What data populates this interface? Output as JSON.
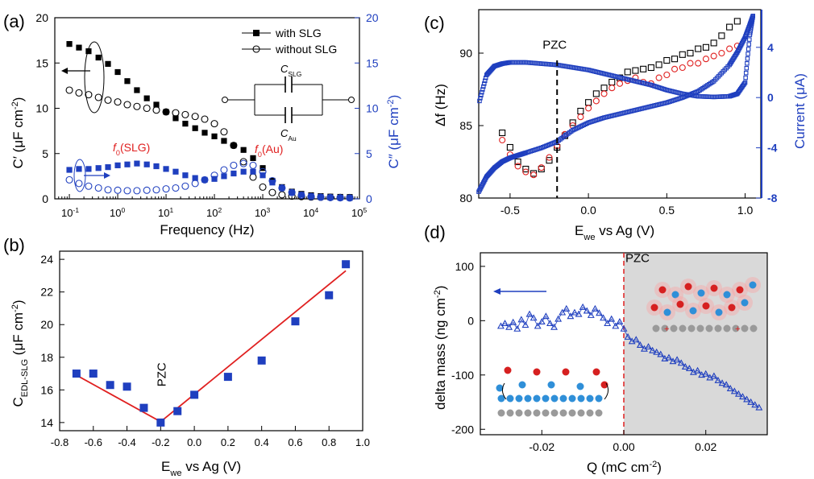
{
  "chart_data": [
    {
      "panel": "(a)",
      "type": "scatter",
      "title": "",
      "xlabel": "Frequency (Hz)",
      "xscale": "log",
      "xlim": [
        0.05,
        100000
      ],
      "xticks": [
        {
          "base": "10",
          "exp": "-1",
          "v": 0.1
        },
        {
          "base": "10",
          "exp": "0",
          "v": 1
        },
        {
          "base": "10",
          "exp": "1",
          "v": 10
        },
        {
          "base": "10",
          "exp": "2",
          "v": 100
        },
        {
          "base": "10",
          "exp": "3",
          "v": 1000
        },
        {
          "base": "10",
          "exp": "4",
          "v": 10000
        },
        {
          "base": "10",
          "exp": "5",
          "v": 100000
        }
      ],
      "ylabel_left": {
        "main": "C′ (μF cm",
        "sup": "-2",
        "tail": ")"
      },
      "ylabel_right": {
        "main": "C″ (μF cm",
        "sup": "-2",
        "tail": ")"
      },
      "ylim": [
        0,
        20
      ],
      "yticks": [
        0,
        5,
        10,
        15,
        20
      ],
      "right_color": "#1f3fbf",
      "legend": [
        "with SLG",
        "without SLG"
      ],
      "annotations": {
        "f0_slg_pre": "f",
        "f0_slg_sub": "0",
        "f0_slg_post": "(SLG)",
        "f0_au_pre": "f",
        "f0_au_sub": "0",
        "f0_au_post": "(Au)",
        "c_slg": "C",
        "c_slg_sub": "SLG",
        "c_au": "C",
        "c_au_sub": "Au"
      },
      "series": [
        {
          "name": "C′ with SLG",
          "axis": "left",
          "marker": "filled-square",
          "color": "#000000",
          "x": [
            0.1,
            0.158,
            0.25,
            0.4,
            0.63,
            1,
            1.58,
            2.5,
            4,
            6.3,
            10,
            15.8,
            25,
            40,
            63,
            100,
            158,
            250,
            400,
            630,
            1000,
            1580,
            2500,
            4000,
            6300,
            10000,
            15800,
            25000,
            40000,
            63000
          ],
          "y": [
            17.1,
            16.7,
            16.3,
            15.6,
            14.9,
            14.0,
            13.0,
            12.0,
            11.1,
            10.4,
            9.6,
            8.9,
            8.3,
            7.8,
            7.3,
            6.9,
            6.4,
            5.9,
            5.4,
            4.5,
            3.4,
            2.0,
            1.3,
            0.8,
            0.55,
            0.4,
            0.3,
            0.25,
            0.22,
            0.2
          ]
        },
        {
          "name": "C′ without SLG",
          "axis": "left",
          "marker": "open-circle",
          "color": "#000000",
          "x": [
            0.1,
            0.158,
            0.25,
            0.4,
            0.63,
            1,
            1.58,
            2.5,
            4,
            6.3,
            10,
            15.8,
            25,
            40,
            63,
            100,
            158,
            250,
            400,
            630,
            1000,
            1580,
            2500,
            4000,
            6300,
            10000,
            15800,
            25000,
            40000,
            63000
          ],
          "y": [
            12.0,
            11.7,
            11.5,
            11.2,
            10.9,
            10.7,
            10.4,
            10.2,
            10.0,
            9.8,
            9.6,
            9.5,
            9.3,
            9.1,
            8.8,
            8.3,
            7.4,
            5.9,
            4.1,
            2.4,
            1.3,
            0.7,
            0.45,
            0.3,
            0.25,
            0.2,
            0.18,
            0.16,
            0.15,
            0.14
          ]
        },
        {
          "name": "C″ with SLG",
          "axis": "right",
          "marker": "filled-square",
          "color": "#1f3fbf",
          "x": [
            0.1,
            0.158,
            0.25,
            0.4,
            0.63,
            1,
            1.58,
            2.5,
            4,
            6.3,
            10,
            15.8,
            25,
            40,
            63,
            100,
            158,
            250,
            400,
            630,
            1000,
            1580,
            2500,
            4000,
            6300,
            10000,
            15800,
            25000,
            40000,
            63000
          ],
          "y": [
            3.2,
            3.3,
            3.3,
            3.4,
            3.5,
            3.7,
            3.8,
            3.9,
            3.8,
            3.6,
            3.3,
            3.0,
            2.6,
            2.3,
            2.1,
            2.2,
            2.5,
            2.8,
            3.0,
            3.0,
            2.6,
            1.8,
            1.2,
            0.7,
            0.45,
            0.3,
            0.2,
            0.15,
            0.12,
            0.1
          ]
        },
        {
          "name": "C″ without SLG",
          "axis": "right",
          "marker": "open-circle",
          "color": "#1f3fbf",
          "x": [
            0.1,
            0.158,
            0.25,
            0.4,
            0.63,
            1,
            1.58,
            2.5,
            4,
            6.3,
            10,
            15.8,
            25,
            40,
            63,
            100,
            158,
            250,
            400,
            630,
            1000,
            1580,
            2500,
            4000,
            6300,
            10000,
            15800,
            25000,
            40000,
            63000
          ],
          "y": [
            2.1,
            1.7,
            1.4,
            1.2,
            1.0,
            0.95,
            0.9,
            0.9,
            0.95,
            1.0,
            1.1,
            1.2,
            1.4,
            1.7,
            2.1,
            2.6,
            3.2,
            3.7,
            3.9,
            3.7,
            3.0,
            2.0,
            1.2,
            0.7,
            0.4,
            0.25,
            0.18,
            0.14,
            0.12,
            0.1
          ]
        }
      ]
    },
    {
      "panel": "(b)",
      "type": "scatter",
      "xlabel": {
        "main": "E",
        "sub": "we",
        "tail": " vs Ag (V)"
      },
      "ylabel": {
        "main": "C",
        "sub": "EDL-SLG",
        "tail": " (μF cm",
        "sup": "-2",
        "end": ")"
      },
      "xlim": [
        -0.8,
        1.0
      ],
      "ylim": [
        13.5,
        24.5
      ],
      "xticks": [
        -0.8,
        -0.6,
        -0.4,
        -0.2,
        0.0,
        0.2,
        0.4,
        0.6,
        0.8,
        1.0
      ],
      "xtick_labels": [
        "-0.8",
        "-0.6",
        "-0.4",
        "-0.2",
        "0.0",
        "0.2",
        "0.4",
        "0.6",
        "0.8",
        "1.0"
      ],
      "yticks": [
        14,
        16,
        18,
        20,
        22,
        24
      ],
      "annotation": "PZC",
      "marker_color": "#1f3fbf",
      "fit_color": "#e02020",
      "x": [
        -0.7,
        -0.6,
        -0.5,
        -0.4,
        -0.3,
        -0.2,
        -0.1,
        0.0,
        0.2,
        0.4,
        0.6,
        0.8,
        0.9
      ],
      "y": [
        17.0,
        17.0,
        16.3,
        16.2,
        14.9,
        14.0,
        14.7,
        15.7,
        16.8,
        17.8,
        20.2,
        21.8,
        23.7
      ],
      "fit_lines": [
        {
          "x": [
            -0.7,
            -0.2
          ],
          "y": [
            16.9,
            14.05
          ]
        },
        {
          "x": [
            -0.2,
            0.9
          ],
          "y": [
            14.05,
            23.3
          ]
        }
      ]
    },
    {
      "panel": "(c)",
      "type": "line",
      "xlabel": {
        "main": "E",
        "sub": "we",
        "tail": " vs Ag (V)"
      },
      "ylabel_left": "Δf (Hz)",
      "ylabel_right": "Current (μA)",
      "xlim": [
        -0.7,
        1.1
      ],
      "ylim_left": [
        80,
        93
      ],
      "ylim_right": [
        -8,
        7
      ],
      "xticks": [
        -0.5,
        0.0,
        0.5,
        1.0
      ],
      "xtick_labels": [
        "-0.5",
        "0.0",
        "0.5",
        "1.0"
      ],
      "yticks_left": [
        80,
        85,
        90
      ],
      "yticks_right": [
        -8,
        -4,
        0,
        4
      ],
      "annotation": "PZC",
      "pzc_x": -0.2,
      "right_color": "#1f3fbf",
      "series": [
        {
          "name": "Δf run 1",
          "axis": "left",
          "marker": "open-square",
          "color": "#000000",
          "x": [
            -0.55,
            -0.5,
            -0.45,
            -0.4,
            -0.35,
            -0.3,
            -0.25,
            -0.2,
            -0.15,
            -0.1,
            -0.05,
            0.0,
            0.05,
            0.1,
            0.15,
            0.2,
            0.25,
            0.3,
            0.35,
            0.4,
            0.45,
            0.5,
            0.55,
            0.6,
            0.65,
            0.7,
            0.75,
            0.8,
            0.85,
            0.9,
            0.95
          ],
          "y": [
            84.5,
            83.5,
            82.5,
            82.0,
            81.7,
            82.0,
            82.6,
            83.5,
            84.3,
            85.2,
            86.0,
            86.6,
            87.2,
            87.6,
            88.0,
            88.3,
            88.7,
            88.8,
            88.9,
            89.0,
            89.2,
            89.5,
            89.6,
            89.9,
            90.0,
            90.3,
            90.4,
            90.7,
            91.2,
            91.8,
            92.2
          ]
        },
        {
          "name": "Δf run 2",
          "axis": "left",
          "marker": "open-circle",
          "color": "#e02020",
          "x": [
            -0.55,
            -0.5,
            -0.45,
            -0.4,
            -0.35,
            -0.3,
            -0.25,
            -0.2,
            -0.15,
            -0.1,
            -0.05,
            0.0,
            0.05,
            0.1,
            0.15,
            0.2,
            0.25,
            0.3,
            0.35,
            0.4,
            0.45,
            0.5,
            0.55,
            0.6,
            0.65,
            0.7,
            0.75,
            0.8,
            0.85,
            0.9,
            0.95
          ],
          "y": [
            84.0,
            83.0,
            82.2,
            81.8,
            81.6,
            82.1,
            82.8,
            83.6,
            84.4,
            85.0,
            85.6,
            86.2,
            86.7,
            87.2,
            87.6,
            87.9,
            88.1,
            88.3,
            88.0,
            87.9,
            88.3,
            88.5,
            88.9,
            89.0,
            89.3,
            89.3,
            89.6,
            89.8,
            90.0,
            90.3,
            90.5
          ]
        },
        {
          "name": "Current forward",
          "axis": "right",
          "marker": "open-square",
          "color": "#1f3fbf",
          "x": [
            -0.7,
            -0.65,
            -0.6,
            -0.55,
            -0.5,
            -0.45,
            -0.4,
            -0.3,
            -0.2,
            -0.1,
            0.0,
            0.1,
            0.2,
            0.3,
            0.4,
            0.5,
            0.6,
            0.7,
            0.8,
            0.9,
            0.95,
            1.0,
            1.03,
            1.05
          ],
          "y": [
            -7.5,
            -6.3,
            -5.6,
            -5.1,
            -4.8,
            -4.6,
            -4.4,
            -4.0,
            -3.5,
            -2.6,
            -2.0,
            -1.6,
            -1.3,
            -1.0,
            -0.7,
            -0.4,
            0.0,
            0.5,
            1.3,
            2.6,
            3.6,
            4.8,
            5.8,
            6.5
          ]
        },
        {
          "name": "Current reverse",
          "axis": "right",
          "marker": "open-square",
          "color": "#1f3fbf",
          "x": [
            1.05,
            1.03,
            1.0,
            0.95,
            0.9,
            0.8,
            0.7,
            0.6,
            0.5,
            0.4,
            0.3,
            0.2,
            0.1,
            0.0,
            -0.1,
            -0.2,
            -0.3,
            -0.4,
            -0.5,
            -0.55,
            -0.6,
            -0.65,
            -0.7
          ],
          "y": [
            6.5,
            5.0,
            1.2,
            0.3,
            0.1,
            0.05,
            0.1,
            0.3,
            0.6,
            1.0,
            1.3,
            1.6,
            1.9,
            2.2,
            2.4,
            2.6,
            2.7,
            2.8,
            2.8,
            2.7,
            2.5,
            1.8,
            -0.5
          ]
        }
      ]
    },
    {
      "panel": "(d)",
      "type": "scatter",
      "xlabel": {
        "main": "Q (mC cm",
        "sup": "-2",
        "tail": ")"
      },
      "ylabel": {
        "main": "delta mass (ng cm",
        "sup": "-2",
        "tail": ")"
      },
      "xlim": [
        -0.035,
        0.035
      ],
      "ylim": [
        -210,
        125
      ],
      "xticks": [
        -0.02,
        0.0,
        0.02
      ],
      "xtick_labels": [
        "-0.02",
        "0.00",
        "0.02"
      ],
      "yticks": [
        -200,
        -100,
        0,
        100
      ],
      "annotation": "PZC",
      "marker_color": "#1f3fbf",
      "shade_color": "#d9d9d9",
      "x": [
        -0.03,
        -0.029,
        -0.028,
        -0.027,
        -0.026,
        -0.025,
        -0.024,
        -0.023,
        -0.022,
        -0.021,
        -0.02,
        -0.019,
        -0.018,
        -0.017,
        -0.016,
        -0.015,
        -0.014,
        -0.013,
        -0.012,
        -0.011,
        -0.01,
        -0.009,
        -0.008,
        -0.007,
        -0.006,
        -0.005,
        -0.004,
        -0.003,
        -0.002,
        -0.001,
        0.0,
        0.001,
        0.002,
        0.003,
        0.004,
        0.005,
        0.006,
        0.007,
        0.008,
        0.009,
        0.01,
        0.011,
        0.012,
        0.013,
        0.014,
        0.015,
        0.016,
        0.017,
        0.018,
        0.019,
        0.02,
        0.021,
        0.022,
        0.023,
        0.024,
        0.025,
        0.026,
        0.027,
        0.028,
        0.029,
        0.03,
        0.031,
        0.032,
        0.033
      ],
      "y": [
        -10,
        -5,
        -12,
        -3,
        -15,
        2,
        -8,
        12,
        5,
        -10,
        -2,
        8,
        -5,
        -12,
        3,
        15,
        22,
        8,
        15,
        12,
        25,
        18,
        10,
        22,
        14,
        5,
        -5,
        3,
        -10,
        -2,
        -15,
        -30,
        -38,
        -35,
        -45,
        -52,
        -48,
        -55,
        -58,
        -62,
        -70,
        -68,
        -75,
        -72,
        -78,
        -85,
        -88,
        -95,
        -92,
        -100,
        -98,
        -105,
        -102,
        -110,
        -115,
        -118,
        -125,
        -130,
        -135,
        -140,
        -145,
        -150,
        -155,
        -160
      ]
    }
  ],
  "panel_labels": [
    "(a)",
    "(b)",
    "(c)",
    "(d)"
  ]
}
